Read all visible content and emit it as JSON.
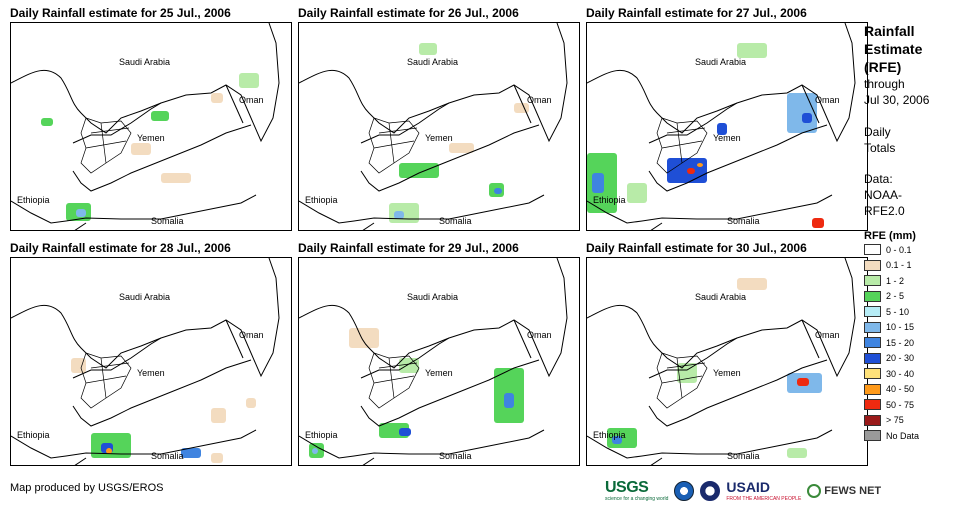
{
  "panels": [
    {
      "title": "Daily Rainfall estimate for 25 Jul., 2006"
    },
    {
      "title": "Daily Rainfall estimate for 26 Jul., 2006"
    },
    {
      "title": "Daily Rainfall estimate for 27 Jul., 2006"
    },
    {
      "title": "Daily Rainfall estimate for 28 Jul., 2006"
    },
    {
      "title": "Daily Rainfall estimate for 29 Jul., 2006"
    },
    {
      "title": "Daily Rainfall estimate for 30 Jul., 2006"
    }
  ],
  "map_labels": {
    "saudi": "Saudi Arabia",
    "oman": "Oman",
    "yemen": "Yemen",
    "ethiopia": "Ethiopia",
    "somalia": "Somalia"
  },
  "legend": {
    "title_lines": [
      "Rainfall",
      "Estimate",
      "(RFE)"
    ],
    "through": "through",
    "date": "Jul 30, 2006",
    "totals_lines": [
      "Daily",
      "Totals"
    ],
    "data_lines": [
      "Data:",
      "NOAA-",
      "RFE2.0"
    ],
    "rfe_heading": "RFE (mm)",
    "classes": [
      {
        "label": "0 - 0.1",
        "color": "#ffffff"
      },
      {
        "label": "0.1 - 1",
        "color": "#f3dcc0"
      },
      {
        "label": "1 - 2",
        "color": "#b8eba8"
      },
      {
        "label": "2 - 5",
        "color": "#55d45a"
      },
      {
        "label": "5 - 10",
        "color": "#b6ecf6"
      },
      {
        "label": "10 - 15",
        "color": "#7fb8ea"
      },
      {
        "label": "15 - 20",
        "color": "#3f84e0"
      },
      {
        "label": "20 - 30",
        "color": "#1f4fd6"
      },
      {
        "label": "30 - 40",
        "color": "#ffe27a"
      },
      {
        "label": "40 - 50",
        "color": "#ff9a1a"
      },
      {
        "label": "50 - 75",
        "color": "#ee2a10"
      },
      {
        "label": "> 75",
        "color": "#9a1a1a"
      },
      {
        "label": "No Data",
        "color": "#9a9a9a"
      }
    ]
  },
  "credit": "Map produced by USGS/EROS",
  "logos": {
    "usgs": "USGS",
    "usgs_tagline": "science for a changing world",
    "usaid": "USAID",
    "usaid_tagline": "FROM THE AMERICAN PEOPLE",
    "fews": "FEWS NET"
  }
}
